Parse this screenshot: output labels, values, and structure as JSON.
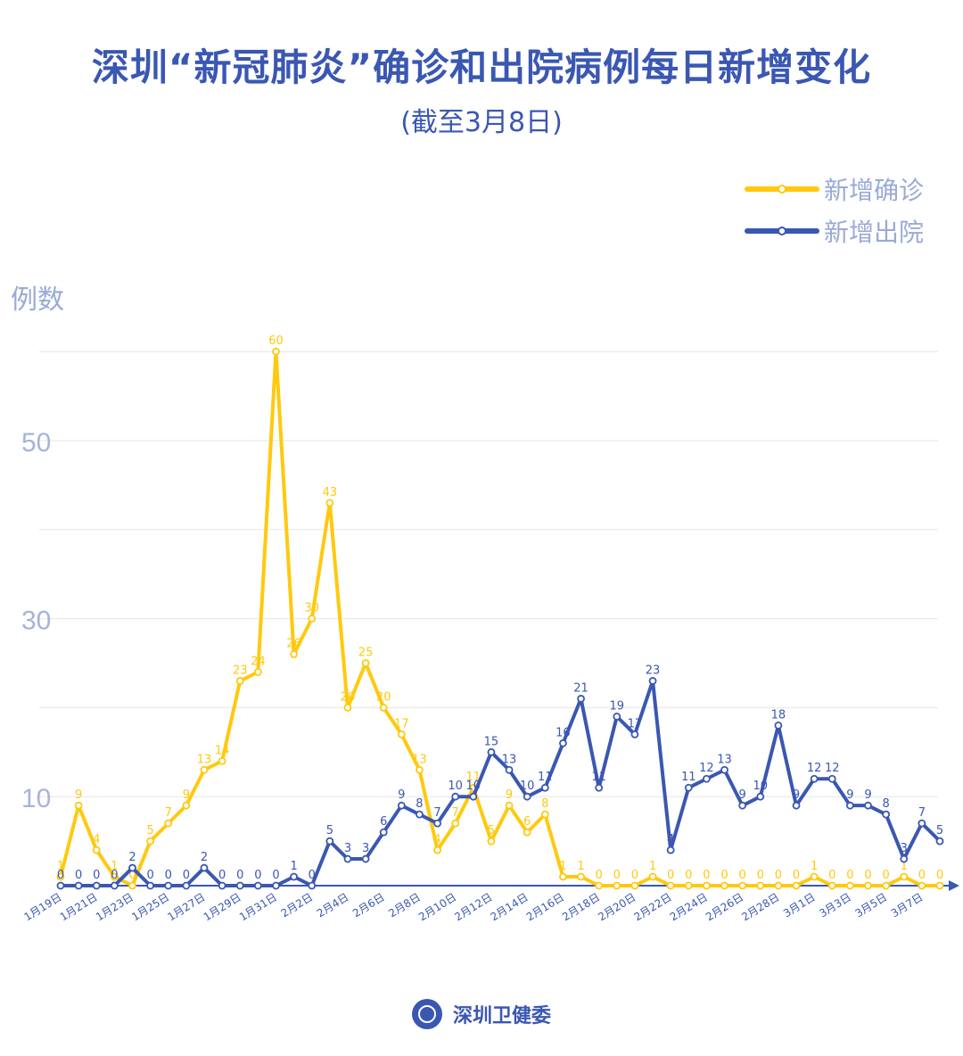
{
  "title": "深圳“新冠肺炎”确诊和出院病例每日新增变化",
  "subtitle": "(截至3月8日)",
  "footer": {
    "org_name": "深圳卫健委",
    "logo_icon": "health-commission-seal-icon"
  },
  "chart_data": {
    "type": "line",
    "title": "深圳“新冠肺炎”确诊和出院病例每日新增变化",
    "subtitle": "(截至3月8日)",
    "ylabel": "例数",
    "xlabel": "",
    "ylim": [
      0,
      60
    ],
    "yticks": [
      10,
      30,
      50
    ],
    "grid": true,
    "legend_position": "top-right",
    "x": [
      "1月19日",
      "1月20日",
      "1月21日",
      "1月22日",
      "1月23日",
      "1月24日",
      "1月25日",
      "1月26日",
      "1月27日",
      "1月28日",
      "1月29日",
      "1月30日",
      "1月31日",
      "2月1日",
      "2月2日",
      "2月3日",
      "2月4日",
      "2月5日",
      "2月6日",
      "2月7日",
      "2月8日",
      "2月9日",
      "2月10日",
      "2月11日",
      "2月12日",
      "2月13日",
      "2月14日",
      "2月15日",
      "2月16日",
      "2月17日",
      "2月18日",
      "2月19日",
      "2月20日",
      "2月21日",
      "2月22日",
      "2月23日",
      "2月24日",
      "2月25日",
      "2月26日",
      "2月27日",
      "2月28日",
      "2月29日",
      "3月1日",
      "3月2日",
      "3月3日",
      "3月4日",
      "3月5日",
      "3月6日",
      "3月7日",
      "3月8日"
    ],
    "xtick_labels": [
      "1月19日",
      "1月21日",
      "1月23日",
      "1月25日",
      "1月27日",
      "1月29日",
      "1月31日",
      "2月2日",
      "2月4日",
      "2月6日",
      "2月8日",
      "2月10日",
      "2月12日",
      "2月14日",
      "2月16日",
      "2月18日",
      "2月20日",
      "2月22日",
      "2月24日",
      "2月26日",
      "2月28日",
      "3月1日",
      "3月3日",
      "3月5日",
      "3月7日"
    ],
    "series": [
      {
        "name": "新增确诊",
        "color": "#ffc90e",
        "values": [
          1,
          9,
          4,
          1,
          0,
          5,
          7,
          9,
          13,
          14,
          23,
          24,
          60,
          26,
          30,
          43,
          20,
          25,
          20,
          17,
          13,
          4,
          7,
          11,
          5,
          9,
          6,
          8,
          1,
          1,
          0,
          0,
          0,
          1,
          0,
          0,
          0,
          0,
          0,
          0,
          0,
          0,
          1,
          0,
          0,
          0,
          0,
          1,
          0,
          0
        ]
      },
      {
        "name": "新增出院",
        "color": "#3a57b2",
        "values": [
          0,
          0,
          0,
          0,
          2,
          0,
          0,
          0,
          2,
          0,
          0,
          0,
          0,
          1,
          0,
          5,
          3,
          3,
          6,
          9,
          8,
          7,
          10,
          10,
          15,
          13,
          10,
          11,
          16,
          21,
          11,
          19,
          17,
          23,
          4,
          11,
          12,
          13,
          9,
          10,
          18,
          9,
          12,
          12,
          9,
          9,
          8,
          3,
          7,
          5
        ]
      }
    ]
  }
}
